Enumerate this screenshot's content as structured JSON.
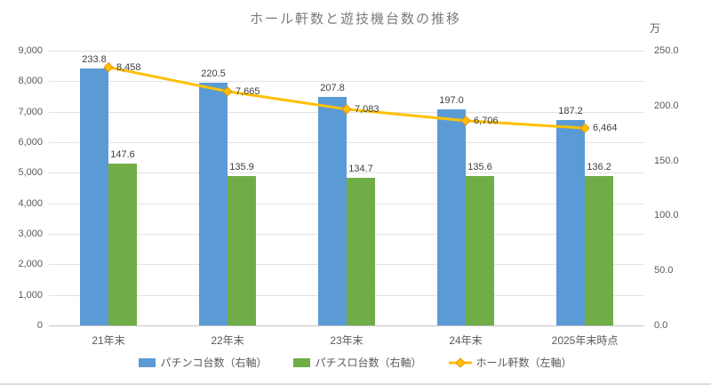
{
  "chart_data": {
    "type": "combo-bar-line",
    "title": "ホール軒数と遊技機台数の推移",
    "unit_label_right": "万",
    "categories": [
      "21年末",
      "22年末",
      "23年末",
      "24年末",
      "2025年末時点"
    ],
    "series": [
      {
        "name": "パチンコ台数（右軸）",
        "type": "bar",
        "axis": "right",
        "color": "#5B9BD5",
        "values": [
          233.8,
          220.5,
          207.8,
          197.0,
          187.2
        ],
        "value_labels": [
          "233.8",
          "220.5",
          "207.8",
          "197.0",
          "187.2"
        ]
      },
      {
        "name": "パチスロ台数（右軸）",
        "type": "bar",
        "axis": "right",
        "color": "#70AD47",
        "values": [
          147.6,
          135.9,
          134.7,
          135.6,
          136.2
        ],
        "value_labels": [
          "147.6",
          "135.9",
          "134.7",
          "135.6",
          "136.2"
        ]
      },
      {
        "name": "ホール軒数（左軸）",
        "type": "line",
        "axis": "left",
        "color": "#FFC000",
        "marker_border": "#E59400",
        "values": [
          8458,
          7665,
          7083,
          6706,
          6464
        ],
        "value_labels": [
          "8,458",
          "7,665",
          "7,083",
          "6,706",
          "6,464"
        ]
      }
    ],
    "left_axis": {
      "min": 0,
      "max": 9000,
      "step": 1000,
      "tick_labels": [
        "0",
        "1,000",
        "2,000",
        "3,000",
        "4,000",
        "5,000",
        "6,000",
        "7,000",
        "8,000",
        "9,000"
      ]
    },
    "right_axis": {
      "min": 0,
      "max": 250,
      "step": 50,
      "tick_labels": [
        "0.0",
        "50.0",
        "100.0",
        "150.0",
        "200.0",
        "250.0"
      ]
    },
    "legend": {
      "position": "bottom"
    },
    "grid": true,
    "colors": {
      "title_text": "#7A7A7A",
      "axis_text": "#595959",
      "data_label_text": "#404040",
      "gridline": "#E3E3E3",
      "axis_line": "#C6C6C6"
    }
  }
}
